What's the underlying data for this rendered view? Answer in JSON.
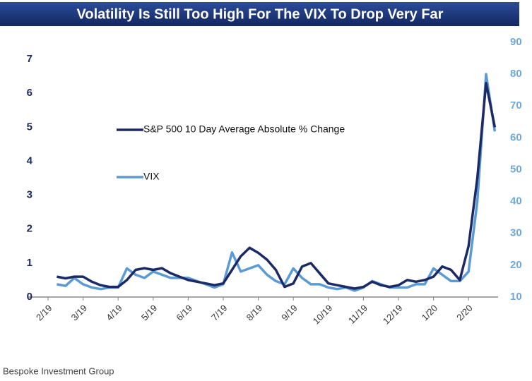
{
  "chart_data": {
    "type": "line",
    "title": "Volatility Is Still Too High For The VIX To Drop Very Far",
    "source": "Bespoke Investment Group",
    "categories": [
      "2/19",
      null,
      null,
      null,
      "3/19",
      null,
      null,
      null,
      "4/19",
      null,
      null,
      null,
      "5/19",
      null,
      null,
      null,
      "6/19",
      null,
      null,
      null,
      "7/19",
      null,
      null,
      null,
      "8/19",
      null,
      null,
      null,
      "9/19",
      null,
      null,
      null,
      "10/19",
      null,
      null,
      null,
      "11/19",
      null,
      null,
      null,
      "12/19",
      null,
      null,
      null,
      "1/20",
      null,
      null,
      null,
      "2/20",
      null,
      null,
      null
    ],
    "series": [
      {
        "name": "S&P 500 10 Day Average Absolute % Change",
        "color": "#1b2a66",
        "axis": "y",
        "values": [
          null,
          0.6,
          0.55,
          0.6,
          0.6,
          0.45,
          0.35,
          0.3,
          0.3,
          0.5,
          0.8,
          0.85,
          0.8,
          0.85,
          0.7,
          0.6,
          0.5,
          0.45,
          0.4,
          0.35,
          0.4,
          0.8,
          1.2,
          1.45,
          1.3,
          1.1,
          0.8,
          0.3,
          0.4,
          0.9,
          1.0,
          0.7,
          0.4,
          0.35,
          0.3,
          0.25,
          0.3,
          0.45,
          0.35,
          0.3,
          0.35,
          0.5,
          0.45,
          0.5,
          0.6,
          0.9,
          0.8,
          0.5,
          1.5,
          3.5,
          6.3,
          5.0
        ]
      },
      {
        "name": "VIX",
        "color": "#5b9bd5",
        "axis": "y2",
        "values": [
          null,
          14,
          13.5,
          16,
          14,
          13,
          12.5,
          13,
          13,
          19,
          17,
          16,
          18,
          17,
          16,
          16,
          16,
          15,
          14,
          13,
          14,
          24,
          18,
          19,
          20,
          17,
          15,
          14,
          19,
          16,
          14,
          14,
          13,
          12.5,
          13,
          12,
          13,
          15,
          14,
          13,
          13,
          13,
          14,
          14,
          19,
          17,
          15,
          15,
          18,
          40,
          80,
          62
        ]
      }
    ],
    "ylim": [
      0,
      7.5
    ],
    "yticks": [
      0,
      1,
      2,
      3,
      4,
      5,
      6,
      7
    ],
    "y2lim": [
      10,
      90
    ],
    "y2ticks": [
      10,
      20,
      30,
      40,
      50,
      60,
      70,
      80,
      90
    ],
    "legend": "center left"
  }
}
